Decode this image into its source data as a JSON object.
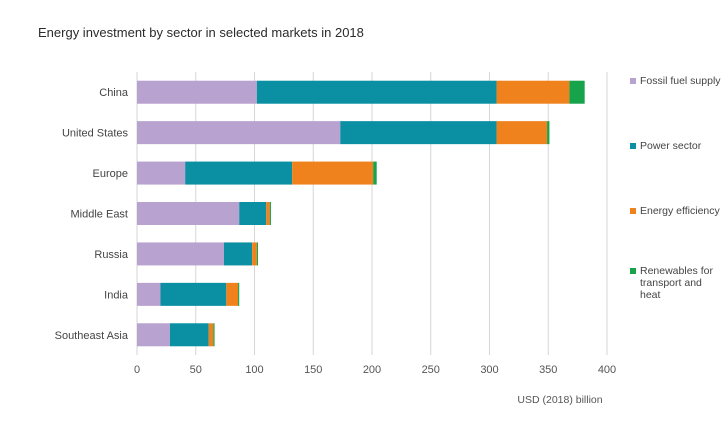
{
  "chart_data": {
    "type": "bar",
    "orientation": "horizontal",
    "stacked": true,
    "title": "Energy investment by sector in selected markets in 2018",
    "xlabel": "USD (2018) billion",
    "ylabel": "",
    "xlim": [
      0,
      400
    ],
    "xticks": [
      0,
      50,
      100,
      150,
      200,
      250,
      300,
      350,
      400
    ],
    "grid": true,
    "legend_position": "right",
    "categories": [
      "China",
      "United States",
      "Europe",
      "Middle East",
      "Russia",
      "India",
      "Southeast Asia"
    ],
    "series": [
      {
        "name": "Fossil fuel supply",
        "color": "#b8a2cf",
        "values": [
          102,
          173,
          41,
          87,
          74,
          20,
          28
        ]
      },
      {
        "name": "Power sector",
        "color": "#0a8fa3",
        "values": [
          204,
          133,
          91,
          23,
          24,
          56,
          33
        ]
      },
      {
        "name": "Energy efficiency",
        "color": "#f0821e",
        "values": [
          62,
          43,
          69,
          3,
          4,
          10,
          4
        ]
      },
      {
        "name": "Renewables for transport and heat",
        "color": "#16a34a",
        "values": [
          13,
          2,
          3,
          1,
          1,
          1,
          1
        ]
      }
    ]
  }
}
